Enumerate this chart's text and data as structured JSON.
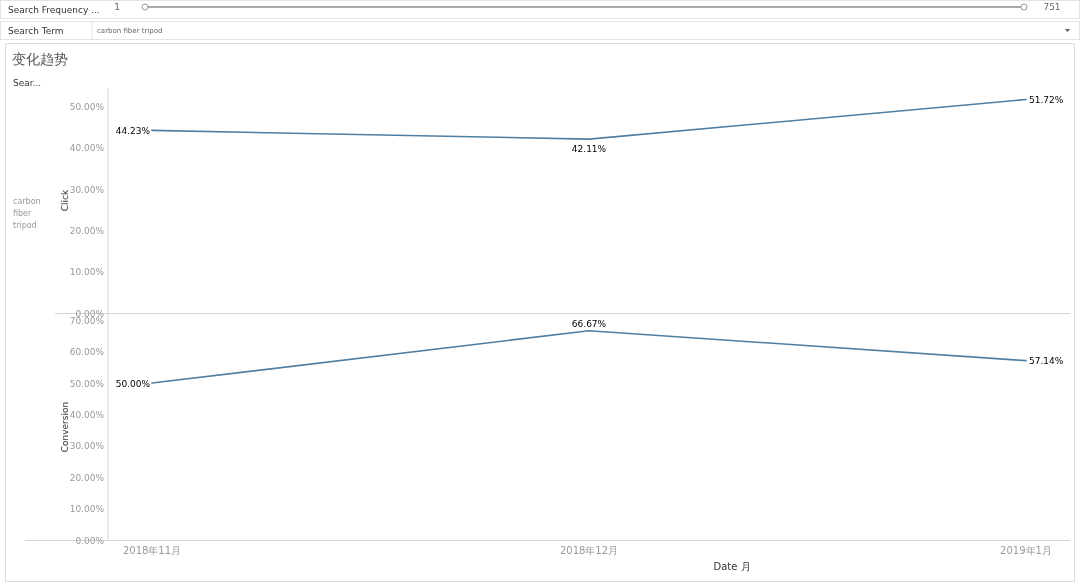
{
  "chart_data": [
    {
      "type": "line",
      "title": "变化趋势",
      "categories": [
        null,
        null,
        null
      ],
      "tick_labels": "y",
      "ylabel": "Click",
      "ylim": [
        0,
        54.5
      ],
      "yticks": [
        {
          "value": 0,
          "label": "0.00%"
        },
        {
          "value": 10,
          "label": "10.00%"
        },
        {
          "value": 20,
          "label": "20.00%"
        },
        {
          "value": 30,
          "label": "30.00%"
        },
        {
          "value": 40,
          "label": "40.00%"
        },
        {
          "value": 50,
          "label": "50.00%"
        }
      ],
      "series": [
        {
          "color": "#4f7ea3",
          "values": [
            44.23,
            42.11,
            51.72
          ],
          "value_labels": [
            "44.23%",
            "42.11%",
            "51.72%"
          ]
        }
      ],
      "annotations": [
        "Search Frequency ...",
        "1",
        "751",
        "Search Term",
        "carbon fiber tripod",
        "Sear...",
        "carbon fiber tripod"
      ]
    },
    {
      "type": "line",
      "categories": [
        "2018年11月",
        "2018年12月",
        "2019年1月"
      ],
      "xlabel": "Date 月",
      "ylabel": "Conversion",
      "ylim": [
        0,
        72
      ],
      "yticks": [
        {
          "value": 0,
          "label": "0.00%"
        },
        {
          "value": 10,
          "label": "10.00%"
        },
        {
          "value": 20,
          "label": "20.00%"
        },
        {
          "value": 30,
          "label": "30.00%"
        },
        {
          "value": 40,
          "label": "40.00%"
        },
        {
          "value": 50,
          "label": "50.00%"
        },
        {
          "value": 60,
          "label": "60.00%"
        },
        {
          "value": 70,
          "label": "70.00%"
        }
      ],
      "series": [
        {
          "color": "#4f7ea3",
          "values": [
            50.0,
            66.67,
            57.14
          ],
          "value_labels": [
            "50.00%",
            "66.67%",
            "57.14%"
          ]
        }
      ]
    }
  ]
}
